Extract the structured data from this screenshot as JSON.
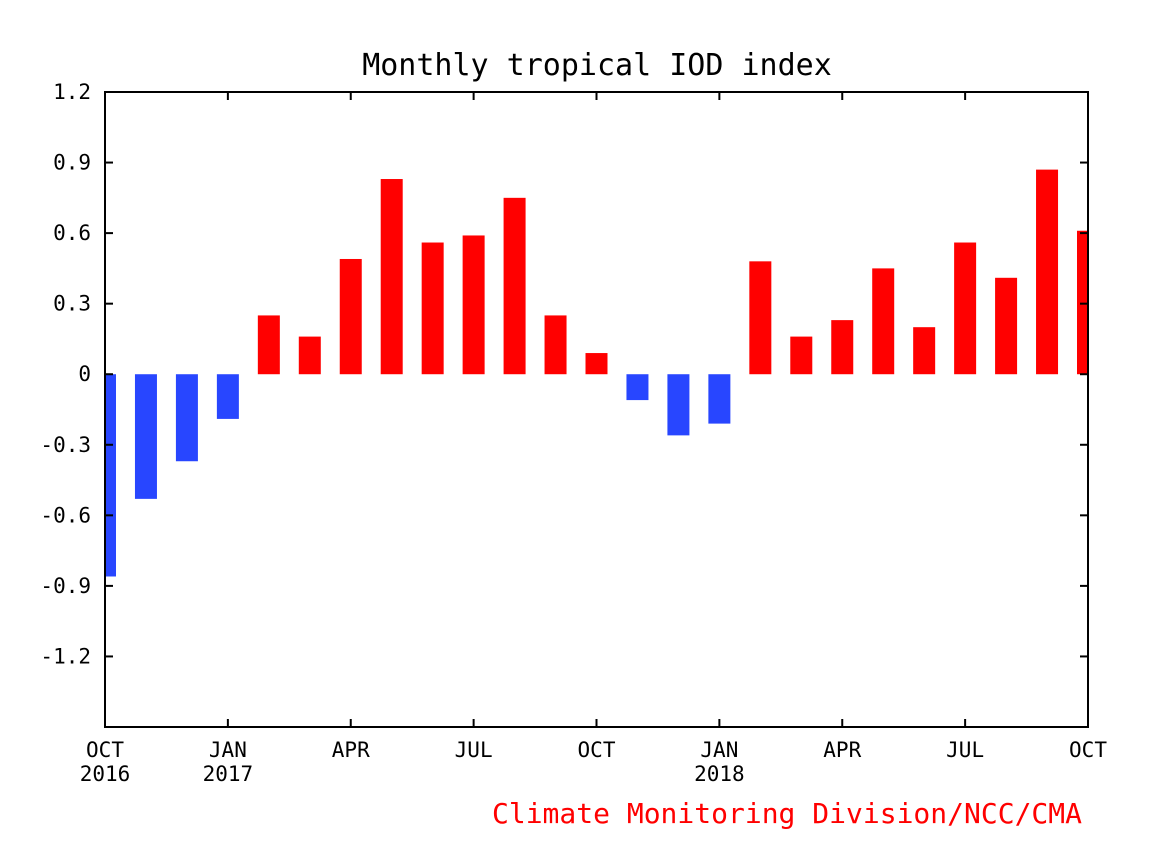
{
  "chart_data": {
    "type": "bar",
    "title": "Monthly tropical IOD index",
    "xlabel": "",
    "ylabel": "",
    "ylim": [
      -1.5,
      1.2
    ],
    "y_ticks": [
      "1.2",
      "0.9",
      "0.6",
      "0.3",
      "0",
      "-0.3",
      "-0.6",
      "-0.9",
      "-1.2"
    ],
    "y_tick_values": [
      1.2,
      0.9,
      0.6,
      0.3,
      0,
      -0.3,
      -0.6,
      -0.9,
      -1.2
    ],
    "categories": [
      "OCT 2016",
      "NOV 2016",
      "DEC 2016",
      "JAN 2017",
      "FEB 2017",
      "MAR 2017",
      "APR 2017",
      "MAY 2017",
      "JUN 2017",
      "JUL 2017",
      "AUG 2017",
      "SEP 2017",
      "OCT 2017",
      "NOV 2017",
      "DEC 2017",
      "JAN 2018",
      "FEB 2018",
      "MAR 2018",
      "APR 2018",
      "MAY 2018",
      "JUN 2018",
      "JUL 2018",
      "AUG 2018",
      "SEP 2018",
      "OCT 2018"
    ],
    "values": [
      -0.86,
      -0.53,
      -0.37,
      -0.19,
      0.25,
      0.16,
      0.49,
      0.83,
      0.56,
      0.59,
      0.75,
      0.25,
      0.09,
      -0.11,
      -0.26,
      -0.21,
      0.48,
      0.16,
      0.23,
      0.45,
      0.2,
      0.56,
      0.41,
      0.87,
      0.61
    ],
    "x_ticks": [
      {
        "index": 0,
        "month": "OCT",
        "year": "2016"
      },
      {
        "index": 3,
        "month": "JAN",
        "year": "2017"
      },
      {
        "index": 6,
        "month": "APR",
        "year": ""
      },
      {
        "index": 9,
        "month": "JUL",
        "year": ""
      },
      {
        "index": 12,
        "month": "OCT",
        "year": ""
      },
      {
        "index": 15,
        "month": "JAN",
        "year": "2018"
      },
      {
        "index": 18,
        "month": "APR",
        "year": ""
      },
      {
        "index": 21,
        "month": "JUL",
        "year": ""
      },
      {
        "index": 24,
        "month": "OCT",
        "year": ""
      }
    ],
    "grid": false,
    "colors": {
      "positive": "#ff0000",
      "negative": "#2846ff",
      "credit": "#ff0000",
      "axis": "#000000"
    },
    "credit": "Climate Monitoring Division/NCC/CMA"
  }
}
